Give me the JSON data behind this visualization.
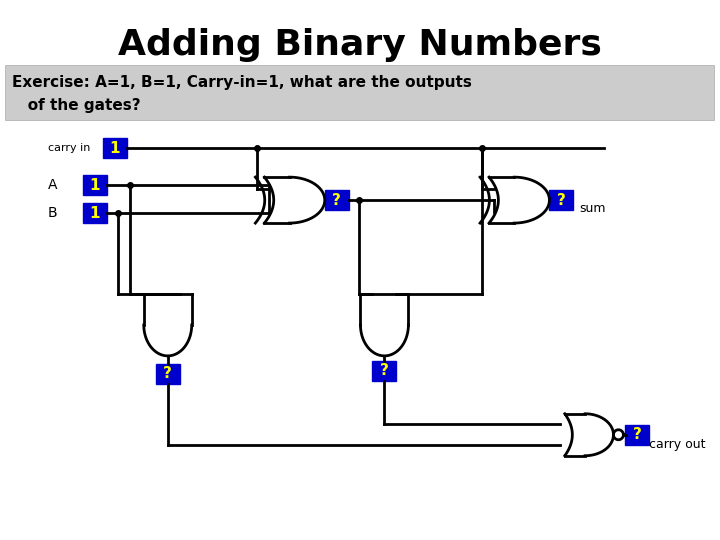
{
  "title": "Adding Binary Numbers",
  "title_fontsize": 26,
  "subtitle_line1": "Exercise: A=1, B=1, Carry-in=1, what are the outputs",
  "subtitle_line2": "   of the gates?",
  "bg_color": "#ffffff",
  "subtitle_bg": "#cccccc",
  "blue_box": "#0000cc",
  "yellow": "#ffff00",
  "black": "#000000"
}
